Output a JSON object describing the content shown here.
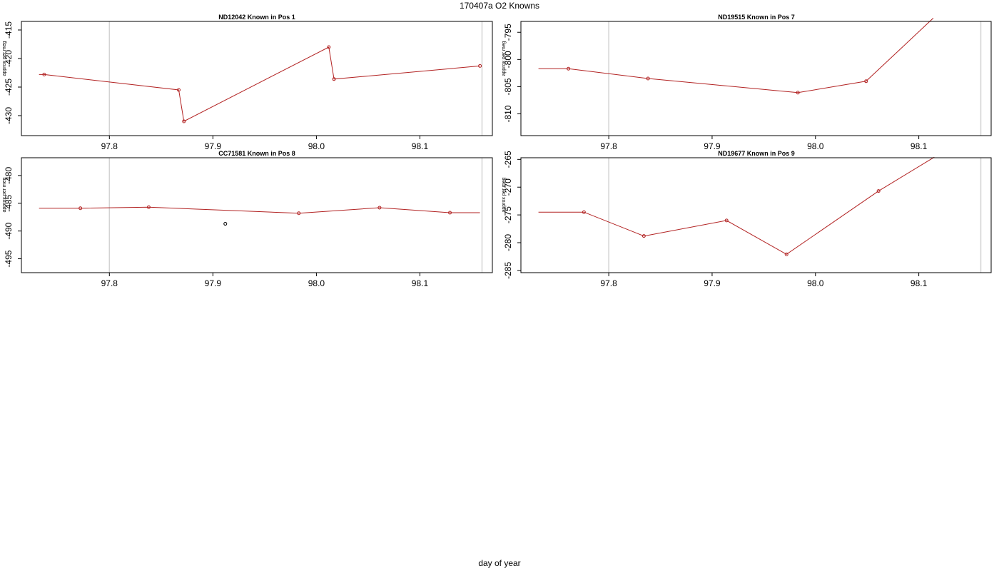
{
  "figure": {
    "title": "170407a   O2 Knowns",
    "xlabel": "day of year"
  },
  "chart_data": [
    {
      "type": "line",
      "title": "ND12042    Known in Pos 1",
      "ylabel": "approx per meg",
      "xlim": [
        97.715,
        98.17
      ],
      "ylim": [
        -433.5,
        -413.5
      ],
      "xticks": [
        97.8,
        97.9,
        98.0,
        98.1
      ],
      "yticks": [
        -415,
        -420,
        -425,
        -430
      ],
      "vlines": [
        97.8,
        98.16
      ],
      "series": [
        {
          "color": "#b22222",
          "marker": true,
          "x": [
            97.732,
            97.737,
            97.867,
            97.872,
            98.012,
            98.017,
            98.158
          ],
          "y": [
            -422.8,
            -422.8,
            -425.5,
            -431.0,
            -418.0,
            -423.6,
            -421.3
          ],
          "markers": [
            1,
            2,
            3,
            4,
            5,
            6
          ]
        }
      ]
    },
    {
      "type": "line",
      "title": "ND19515    Known in Pos 7",
      "ylabel": "approx per meg",
      "xlim": [
        97.715,
        98.17
      ],
      "ylim": [
        -814.0,
        -793.0
      ],
      "xticks": [
        97.8,
        97.9,
        98.0,
        98.1
      ],
      "yticks": [
        -795,
        -800,
        -805,
        -810
      ],
      "vlines": [
        97.8,
        98.16
      ],
      "series": [
        {
          "color": "#b22222",
          "marker": true,
          "x": [
            97.732,
            97.761,
            97.838,
            97.983,
            98.049,
            98.114
          ],
          "y": [
            -801.7,
            -801.7,
            -803.5,
            -806.1,
            -804.0,
            -792.4
          ],
          "markers": [
            1,
            2,
            3,
            4
          ]
        }
      ]
    },
    {
      "type": "line",
      "title": "CC71581    Known in Pos 8",
      "ylabel": "approx per meg",
      "xlim": [
        97.715,
        98.17
      ],
      "ylim": [
        -497.5,
        -476.8
      ],
      "xticks": [
        97.8,
        97.9,
        98.0,
        98.1
      ],
      "yticks": [
        -480,
        -485,
        -490,
        -495
      ],
      "vlines": [
        97.8,
        98.16
      ],
      "series": [
        {
          "color": "#b22222",
          "marker": true,
          "x": [
            97.732,
            97.772,
            97.838,
            97.983,
            98.061,
            98.129,
            98.158
          ],
          "y": [
            -485.9,
            -485.9,
            -485.7,
            -486.8,
            -485.8,
            -486.7,
            -486.7
          ],
          "markers": [
            1,
            2,
            3,
            4,
            5
          ]
        },
        {
          "color": "#000000",
          "marker": true,
          "line": false,
          "x": [
            97.912
          ],
          "y": [
            -488.7
          ],
          "markers": [
            0
          ]
        }
      ]
    },
    {
      "type": "line",
      "title": "ND19677    Known in Pos 9",
      "ylabel": "approx per meg",
      "xlim": [
        97.715,
        98.17
      ],
      "ylim": [
        -285.4,
        -264.7
      ],
      "xticks": [
        97.8,
        97.9,
        98.0,
        98.1
      ],
      "yticks": [
        -265,
        -270,
        -275,
        -280,
        -285
      ],
      "vlines": [
        97.8,
        98.16
      ],
      "series": [
        {
          "color": "#b22222",
          "marker": true,
          "x": [
            97.732,
            97.776,
            97.834,
            97.914,
            97.972,
            98.061,
            98.115
          ],
          "y": [
            -274.5,
            -274.5,
            -278.8,
            -276.0,
            -282.1,
            -270.7,
            -264.6
          ],
          "markers": [
            1,
            2,
            3,
            4,
            5
          ]
        }
      ]
    }
  ]
}
